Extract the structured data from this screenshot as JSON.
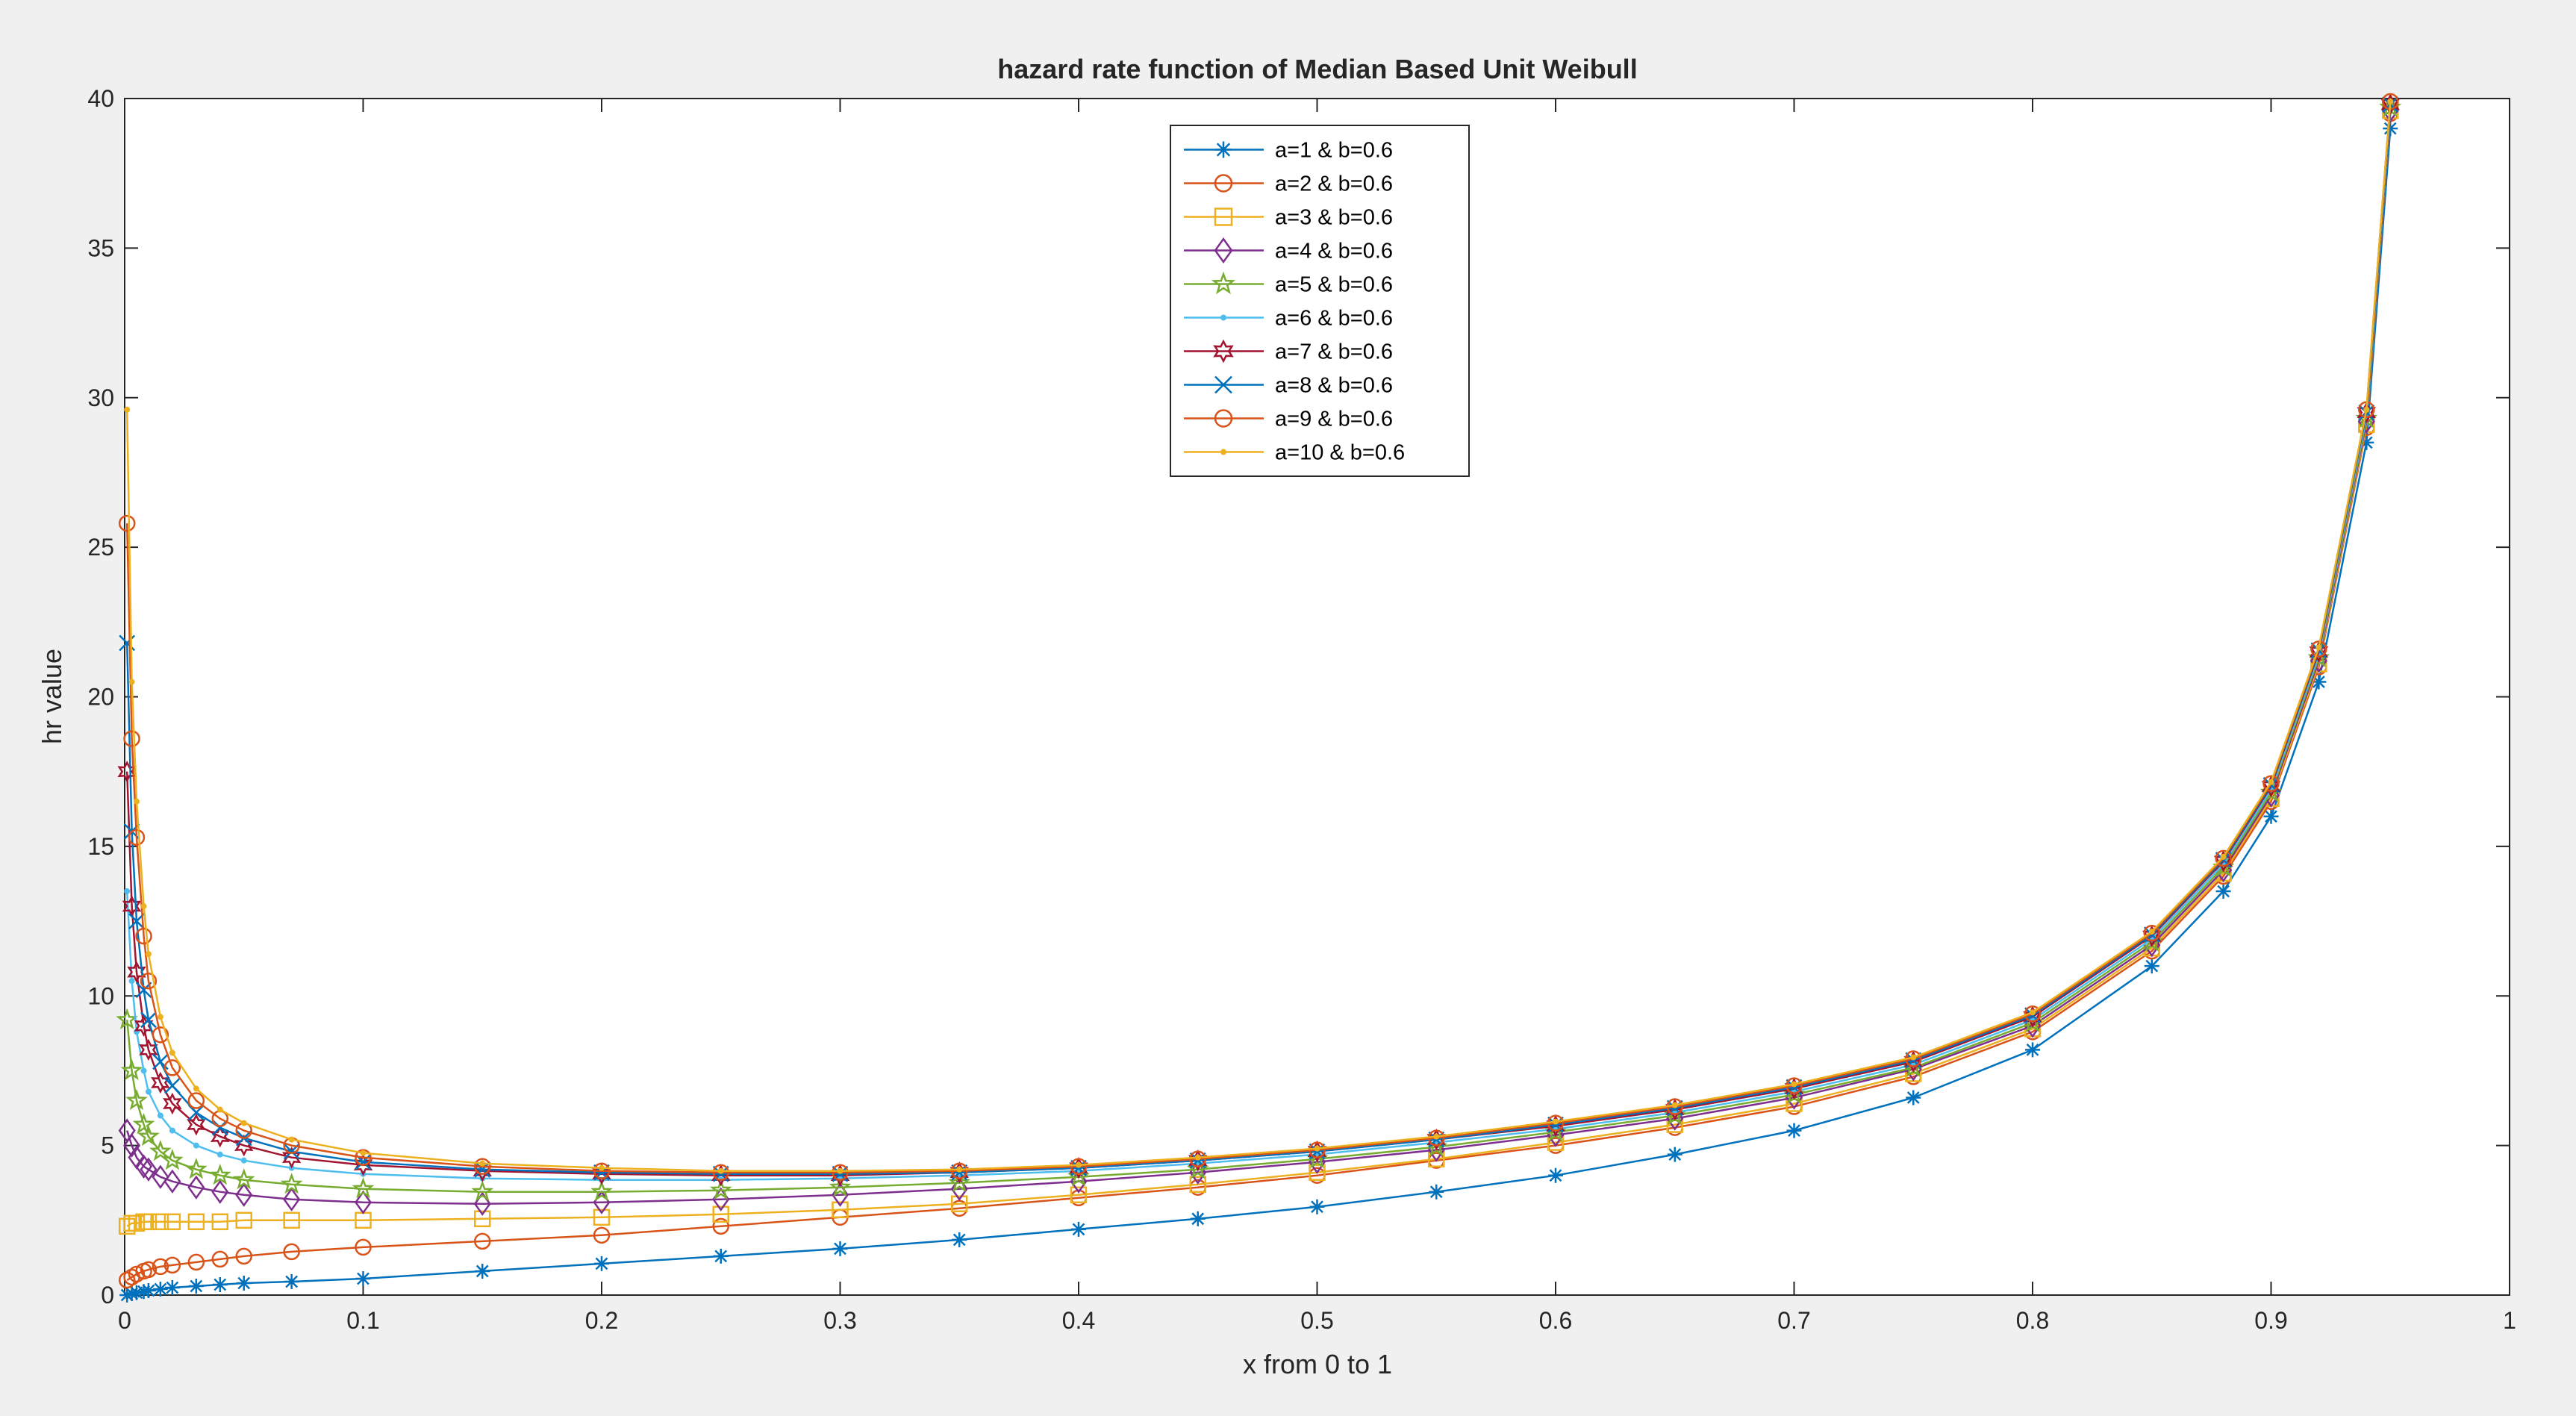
{
  "chart_data": {
    "type": "line",
    "title": "hazard rate function of Median Based  Unit  Weibull",
    "xlabel": "x from 0 to 1",
    "ylabel": "hr value",
    "xlim": [
      0,
      1
    ],
    "ylim": [
      0,
      40
    ],
    "xticks": [
      "0",
      "0.1",
      "0.2",
      "0.3",
      "0.4",
      "0.5",
      "0.6",
      "0.7",
      "0.8",
      "0.9",
      "1"
    ],
    "yticks": [
      "0",
      "5",
      "10",
      "15",
      "20",
      "25",
      "30",
      "35",
      "40"
    ],
    "grid": false,
    "legend_position": "top-center",
    "x": [
      0.001,
      0.003,
      0.005,
      0.008,
      0.01,
      0.015,
      0.02,
      0.03,
      0.04,
      0.05,
      0.07,
      0.1,
      0.15,
      0.2,
      0.25,
      0.3,
      0.35,
      0.4,
      0.45,
      0.5,
      0.55,
      0.6,
      0.65,
      0.7,
      0.75,
      0.8,
      0.85,
      0.88,
      0.9,
      0.92,
      0.94,
      0.95
    ],
    "series": [
      {
        "name": "a=1   &  b=0.6",
        "color": "#0072BD",
        "marker": "asterisk",
        "values": [
          0.0,
          0.05,
          0.08,
          0.12,
          0.15,
          0.2,
          0.25,
          0.3,
          0.35,
          0.4,
          0.45,
          0.55,
          0.8,
          1.05,
          1.3,
          1.55,
          1.85,
          2.2,
          2.55,
          2.95,
          3.45,
          4.0,
          4.7,
          5.5,
          6.6,
          8.2,
          11.0,
          13.5,
          16.0,
          20.5,
          28.5,
          39.0
        ]
      },
      {
        "name": "a=2  &  b=0.6",
        "color": "#D95319",
        "marker": "circle",
        "values": [
          0.5,
          0.6,
          0.7,
          0.8,
          0.85,
          0.95,
          1.0,
          1.1,
          1.2,
          1.3,
          1.45,
          1.6,
          1.8,
          2.0,
          2.3,
          2.6,
          2.9,
          3.25,
          3.6,
          4.0,
          4.5,
          5.0,
          5.6,
          6.3,
          7.3,
          8.8,
          11.5,
          14.0,
          16.5,
          21.0,
          29.0,
          39.5
        ]
      },
      {
        "name": "a=3  &  b=0.6",
        "color": "#EDB120",
        "marker": "square",
        "values": [
          2.3,
          2.4,
          2.4,
          2.45,
          2.45,
          2.45,
          2.45,
          2.45,
          2.45,
          2.5,
          2.5,
          2.5,
          2.55,
          2.6,
          2.7,
          2.85,
          3.05,
          3.35,
          3.7,
          4.1,
          4.55,
          5.1,
          5.7,
          6.4,
          7.4,
          8.9,
          11.6,
          14.1,
          16.6,
          21.1,
          29.1,
          39.6
        ]
      },
      {
        "name": "a=4   &  b=0.6",
        "color": "#7E2F8E",
        "marker": "diamond",
        "values": [
          5.5,
          5.0,
          4.6,
          4.3,
          4.2,
          3.95,
          3.8,
          3.6,
          3.45,
          3.35,
          3.2,
          3.1,
          3.05,
          3.1,
          3.2,
          3.35,
          3.55,
          3.8,
          4.1,
          4.45,
          4.85,
          5.35,
          5.9,
          6.6,
          7.55,
          9.0,
          11.7,
          14.2,
          16.7,
          21.2,
          29.2,
          39.6
        ]
      },
      {
        "name": "a=5  &  b=0.6",
        "color": "#77AC30",
        "marker": "star",
        "values": [
          9.2,
          7.5,
          6.5,
          5.7,
          5.3,
          4.8,
          4.5,
          4.2,
          4.0,
          3.85,
          3.7,
          3.55,
          3.45,
          3.45,
          3.5,
          3.6,
          3.75,
          3.95,
          4.2,
          4.55,
          4.95,
          5.45,
          6.0,
          6.7,
          7.6,
          9.1,
          11.8,
          14.3,
          16.8,
          21.3,
          29.3,
          39.7
        ]
      },
      {
        "name": "a=6  &  b=0.6",
        "color": "#4DBEEE",
        "marker": "point",
        "values": [
          13.5,
          10.5,
          8.8,
          7.5,
          6.8,
          6.0,
          5.5,
          5.0,
          4.7,
          4.5,
          4.25,
          4.05,
          3.9,
          3.85,
          3.85,
          3.9,
          4.0,
          4.15,
          4.4,
          4.7,
          5.1,
          5.55,
          6.1,
          6.8,
          7.7,
          9.2,
          11.9,
          14.4,
          16.9,
          21.4,
          29.4,
          39.7
        ]
      },
      {
        "name": "a=7  &  b=0.6",
        "color": "#A2142F",
        "marker": "hexagram",
        "values": [
          17.5,
          13.0,
          10.8,
          9.0,
          8.2,
          7.1,
          6.4,
          5.7,
          5.3,
          5.0,
          4.6,
          4.35,
          4.15,
          4.05,
          4.0,
          4.0,
          4.1,
          4.25,
          4.5,
          4.8,
          5.2,
          5.65,
          6.2,
          6.9,
          7.8,
          9.3,
          12.0,
          14.5,
          17.0,
          21.5,
          29.5,
          39.8
        ]
      },
      {
        "name": "a=8   &  b=0.6",
        "color": "#0072BD",
        "marker": "x",
        "values": [
          21.8,
          15.5,
          12.5,
          10.2,
          9.2,
          7.8,
          7.0,
          6.1,
          5.6,
          5.25,
          4.8,
          4.45,
          4.2,
          4.1,
          4.05,
          4.05,
          4.1,
          4.25,
          4.5,
          4.8,
          5.2,
          5.7,
          6.25,
          6.95,
          7.85,
          9.35,
          12.05,
          14.55,
          17.05,
          21.55,
          29.5,
          39.8
        ]
      },
      {
        "name": "a=9   &  b=0.6",
        "color": "#D95319",
        "marker": "circle",
        "values": [
          25.8,
          18.6,
          15.3,
          12.0,
          10.5,
          8.7,
          7.6,
          6.5,
          5.9,
          5.5,
          5.0,
          4.6,
          4.3,
          4.15,
          4.1,
          4.1,
          4.15,
          4.3,
          4.55,
          4.85,
          5.25,
          5.75,
          6.3,
          7.0,
          7.9,
          9.4,
          12.1,
          14.6,
          17.1,
          21.6,
          29.6,
          39.9
        ]
      },
      {
        "name": "a=10 & b=0.6",
        "color": "#EDB120",
        "marker": "point",
        "values": [
          29.6,
          20.5,
          16.5,
          13.0,
          11.4,
          9.3,
          8.1,
          6.9,
          6.2,
          5.75,
          5.2,
          4.75,
          4.4,
          4.25,
          4.15,
          4.15,
          4.2,
          4.35,
          4.6,
          4.9,
          5.3,
          5.8,
          6.35,
          7.05,
          7.95,
          9.45,
          12.15,
          14.65,
          17.15,
          21.65,
          29.6,
          39.9
        ]
      }
    ]
  }
}
